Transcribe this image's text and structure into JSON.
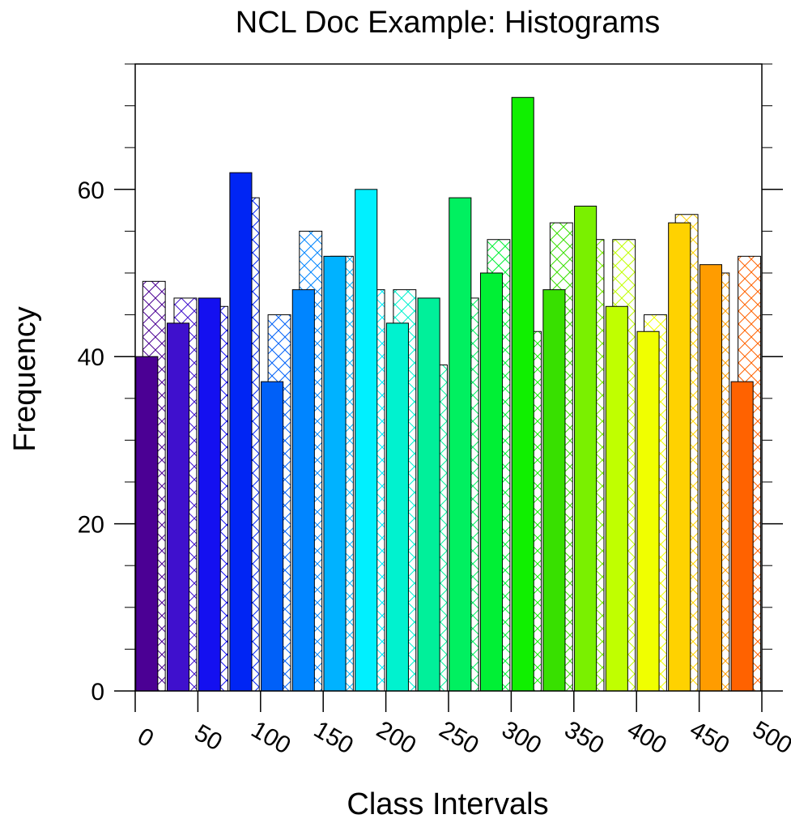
{
  "chart_data": {
    "type": "bar",
    "title": "NCL Doc Example: Histograms",
    "xlabel": "Class Intervals",
    "ylabel": "Frequency",
    "xlim": [
      0,
      500
    ],
    "ylim": [
      0,
      75
    ],
    "x_ticks": [
      0,
      50,
      100,
      150,
      200,
      250,
      300,
      350,
      400,
      450,
      500
    ],
    "x_tick_labels": [
      "0",
      "50",
      "100",
      "150",
      "200",
      "250",
      "300",
      "350",
      "400",
      "450",
      "500"
    ],
    "y_ticks": [
      0,
      20,
      40,
      60
    ],
    "y_tick_labels": [
      "0",
      "20",
      "40",
      "60"
    ],
    "bin_width": 25,
    "series": [
      {
        "fill": "solid",
        "values": [
          40,
          44,
          47,
          62,
          37,
          48,
          52,
          60,
          44,
          47,
          59,
          50,
          71,
          48,
          58,
          46,
          43,
          56,
          51,
          37
        ]
      },
      {
        "fill": "crosshatch",
        "values": [
          49,
          47,
          46,
          59,
          45,
          55,
          52,
          48,
          48,
          39,
          47,
          54,
          43,
          56,
          54,
          54,
          45,
          57,
          50,
          52
        ]
      }
    ],
    "colors": [
      "#4b0094",
      "#3f10cd",
      "#1410f0",
      "#0025f4",
      "#0060f8",
      "#0085ff",
      "#00b2ff",
      "#00f0ff",
      "#00f2cf",
      "#00f09a",
      "#00f060",
      "#00f035",
      "#10f000",
      "#38e000",
      "#7af000",
      "#c0ff00",
      "#f0ff00",
      "#ffd200",
      "#ff9c00",
      "#ff6200"
    ]
  }
}
